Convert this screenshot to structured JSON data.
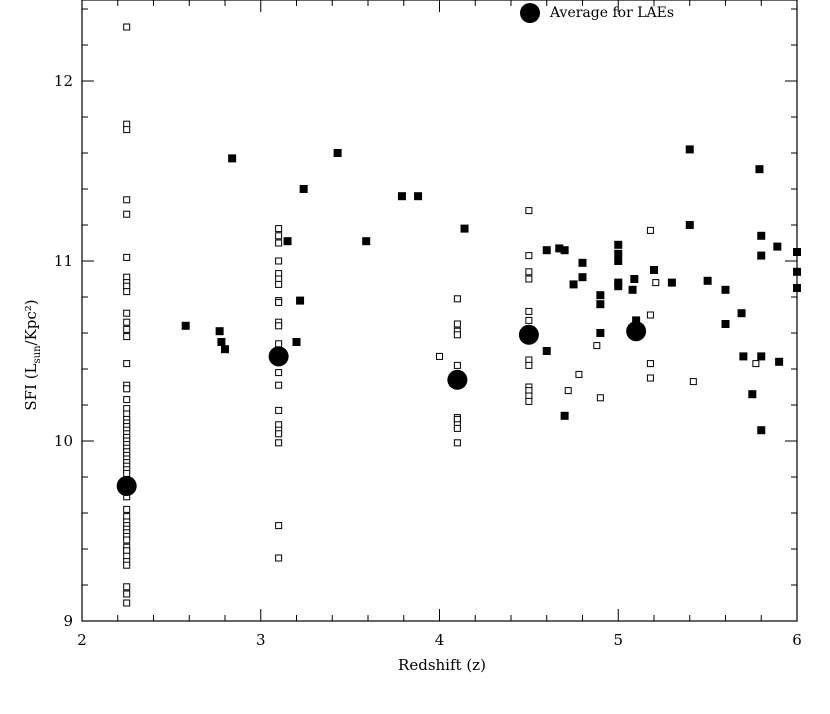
{
  "chart_data": {
    "type": "scatter",
    "title": "",
    "xlabel": "Redshift (z)",
    "ylabel_main": "SFI (L",
    "ylabel_sub": "sun",
    "ylabel_end": "/Kpc²)",
    "xlim": [
      2,
      6
    ],
    "ylim": [
      9,
      12.45
    ],
    "x_ticks": [
      2,
      3,
      4,
      5,
      6
    ],
    "y_ticks": [
      9,
      10,
      11,
      12
    ],
    "legend_placement": "top-right",
    "series": [
      {
        "name": "",
        "marker": "open-square",
        "points": [
          [
            2.25,
            12.3
          ],
          [
            2.25,
            11.76
          ],
          [
            2.25,
            11.73
          ],
          [
            2.25,
            11.34
          ],
          [
            2.25,
            11.26
          ],
          [
            2.25,
            11.02
          ],
          [
            2.25,
            10.91
          ],
          [
            2.25,
            10.88
          ],
          [
            2.25,
            10.86
          ],
          [
            2.25,
            10.83
          ],
          [
            2.25,
            10.71
          ],
          [
            2.25,
            10.66
          ],
          [
            2.25,
            10.62
          ],
          [
            2.25,
            10.58
          ],
          [
            2.25,
            10.43
          ],
          [
            2.25,
            10.31
          ],
          [
            2.25,
            10.29
          ],
          [
            2.25,
            10.23
          ],
          [
            2.25,
            10.18
          ],
          [
            2.25,
            10.15
          ],
          [
            2.25,
            10.12
          ],
          [
            2.25,
            10.1
          ],
          [
            2.25,
            10.08
          ],
          [
            2.25,
            10.06
          ],
          [
            2.25,
            10.04
          ],
          [
            2.25,
            10.02
          ],
          [
            2.25,
            10.0
          ],
          [
            2.25,
            9.98
          ],
          [
            2.25,
            9.96
          ],
          [
            2.25,
            9.94
          ],
          [
            2.25,
            9.92
          ],
          [
            2.25,
            9.9
          ],
          [
            2.25,
            9.88
          ],
          [
            2.25,
            9.86
          ],
          [
            2.25,
            9.84
          ],
          [
            2.25,
            9.82
          ],
          [
            2.25,
            9.78
          ],
          [
            2.25,
            9.72
          ],
          [
            2.25,
            9.69
          ],
          [
            2.25,
            9.62
          ],
          [
            2.25,
            9.58
          ],
          [
            2.25,
            9.55
          ],
          [
            2.25,
            9.53
          ],
          [
            2.25,
            9.51
          ],
          [
            2.25,
            9.49
          ],
          [
            2.25,
            9.47
          ],
          [
            2.25,
            9.45
          ],
          [
            2.25,
            9.41
          ],
          [
            2.25,
            9.39
          ],
          [
            2.25,
            9.36
          ],
          [
            2.25,
            9.33
          ],
          [
            2.25,
            9.31
          ],
          [
            2.25,
            9.19
          ],
          [
            2.25,
            9.15
          ],
          [
            2.25,
            9.1
          ],
          [
            3.1,
            11.18
          ],
          [
            3.1,
            11.14
          ],
          [
            3.1,
            11.1
          ],
          [
            3.1,
            11.0
          ],
          [
            3.1,
            10.93
          ],
          [
            3.1,
            10.9
          ],
          [
            3.1,
            10.87
          ],
          [
            3.1,
            10.78
          ],
          [
            3.1,
            10.77
          ],
          [
            3.1,
            10.66
          ],
          [
            3.1,
            10.64
          ],
          [
            3.1,
            10.54
          ],
          [
            3.1,
            10.38
          ],
          [
            3.1,
            10.31
          ],
          [
            3.1,
            10.17
          ],
          [
            3.1,
            10.09
          ],
          [
            3.1,
            10.06
          ],
          [
            3.1,
            10.04
          ],
          [
            3.1,
            9.99
          ],
          [
            3.1,
            9.53
          ],
          [
            3.1,
            9.35
          ],
          [
            4.0,
            10.47
          ],
          [
            4.1,
            10.79
          ],
          [
            4.1,
            10.65
          ],
          [
            4.1,
            10.61
          ],
          [
            4.1,
            10.59
          ],
          [
            4.1,
            10.42
          ],
          [
            4.1,
            10.13
          ],
          [
            4.1,
            10.12
          ],
          [
            4.1,
            10.09
          ],
          [
            4.1,
            10.07
          ],
          [
            4.1,
            9.99
          ],
          [
            4.5,
            11.28
          ],
          [
            4.5,
            11.03
          ],
          [
            4.5,
            10.94
          ],
          [
            4.5,
            10.9
          ],
          [
            4.5,
            10.72
          ],
          [
            4.5,
            10.67
          ],
          [
            4.5,
            10.45
          ],
          [
            4.5,
            10.42
          ],
          [
            4.5,
            10.3
          ],
          [
            4.5,
            10.28
          ],
          [
            4.5,
            10.25
          ],
          [
            4.5,
            10.22
          ],
          [
            4.72,
            10.28
          ],
          [
            4.78,
            10.37
          ],
          [
            4.88,
            10.53
          ],
          [
            4.9,
            10.24
          ],
          [
            5.18,
            11.17
          ],
          [
            5.18,
            10.7
          ],
          [
            5.18,
            10.43
          ],
          [
            5.18,
            10.35
          ],
          [
            5.21,
            10.88
          ],
          [
            5.42,
            10.33
          ],
          [
            5.77,
            10.43
          ]
        ]
      },
      {
        "name": "",
        "marker": "filled-square",
        "points": [
          [
            2.58,
            10.64
          ],
          [
            2.77,
            10.61
          ],
          [
            2.78,
            10.55
          ],
          [
            2.8,
            10.51
          ],
          [
            2.84,
            11.57
          ],
          [
            3.15,
            11.11
          ],
          [
            3.2,
            10.55
          ],
          [
            3.22,
            10.78
          ],
          [
            3.24,
            11.4
          ],
          [
            3.43,
            11.6
          ],
          [
            3.59,
            11.11
          ],
          [
            3.79,
            11.36
          ],
          [
            3.88,
            11.36
          ],
          [
            4.14,
            11.18
          ],
          [
            4.6,
            11.06
          ],
          [
            4.6,
            10.5
          ],
          [
            4.67,
            11.07
          ],
          [
            4.7,
            11.06
          ],
          [
            4.7,
            10.14
          ],
          [
            4.75,
            10.87
          ],
          [
            4.8,
            10.99
          ],
          [
            4.8,
            10.91
          ],
          [
            4.9,
            10.81
          ],
          [
            4.9,
            10.76
          ],
          [
            4.9,
            10.6
          ],
          [
            5.0,
            11.09
          ],
          [
            5.0,
            11.04
          ],
          [
            5.0,
            11.0
          ],
          [
            5.0,
            10.88
          ],
          [
            5.0,
            10.86
          ],
          [
            5.08,
            10.84
          ],
          [
            5.09,
            10.9
          ],
          [
            5.1,
            10.67
          ],
          [
            5.2,
            10.95
          ],
          [
            5.3,
            10.88
          ],
          [
            5.4,
            11.62
          ],
          [
            5.4,
            11.2
          ],
          [
            5.5,
            10.89
          ],
          [
            5.6,
            10.84
          ],
          [
            5.6,
            10.65
          ],
          [
            5.69,
            10.71
          ],
          [
            5.7,
            10.47
          ],
          [
            5.75,
            10.26
          ],
          [
            5.79,
            11.51
          ],
          [
            5.8,
            11.14
          ],
          [
            5.8,
            11.03
          ],
          [
            5.8,
            10.47
          ],
          [
            5.8,
            10.06
          ],
          [
            5.89,
            11.08
          ],
          [
            5.9,
            10.44
          ],
          [
            6.0,
            11.05
          ],
          [
            6.0,
            10.94
          ],
          [
            6.0,
            10.85
          ]
        ]
      },
      {
        "name": "Average for LAEs",
        "marker": "filled-circle",
        "points": [
          [
            2.25,
            9.75
          ],
          [
            3.1,
            10.47
          ],
          [
            4.1,
            10.34
          ],
          [
            4.5,
            10.59
          ],
          [
            5.1,
            10.61
          ]
        ]
      }
    ]
  }
}
